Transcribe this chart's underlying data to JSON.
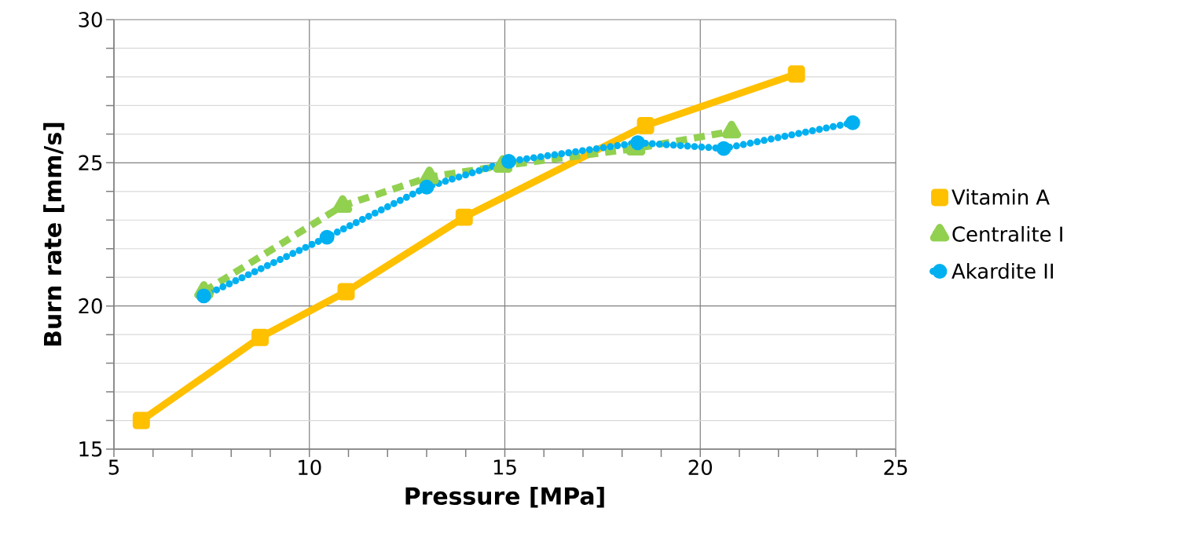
{
  "chart_data": {
    "type": "line",
    "xlabel": "Pressure [MPa]",
    "ylabel": "Burn rate [mm/s]",
    "xlim": [
      5,
      25
    ],
    "ylim": [
      15,
      30
    ],
    "xticks": [
      5,
      10,
      15,
      20,
      25
    ],
    "yticks": [
      15,
      20,
      25,
      30
    ],
    "grid": true,
    "legend": "right",
    "series": [
      {
        "name": "Vitamin A",
        "color": "#ffc000",
        "marker": "square",
        "line_style": "solid",
        "x": [
          5.7,
          8.74,
          10.94,
          13.96,
          18.6,
          22.46
        ],
        "values": [
          16.0,
          18.9,
          20.5,
          23.1,
          26.3,
          28.1
        ]
      },
      {
        "name": "Centralite I",
        "color": "#92d050",
        "marker": "triangle",
        "line_style": "dashed",
        "x": [
          7.3,
          10.85,
          13.07,
          14.95,
          18.35,
          20.8
        ],
        "values": [
          20.5,
          23.5,
          24.5,
          24.9,
          25.5,
          26.1
        ]
      },
      {
        "name": "Akardite II",
        "color": "#00b0f0",
        "marker": "circle",
        "line_style": "dotted",
        "x": [
          7.3,
          10.45,
          13.0,
          15.1,
          18.4,
          20.6,
          23.9
        ],
        "values": [
          20.35,
          22.4,
          24.15,
          25.05,
          25.7,
          25.5,
          26.4
        ]
      }
    ]
  }
}
